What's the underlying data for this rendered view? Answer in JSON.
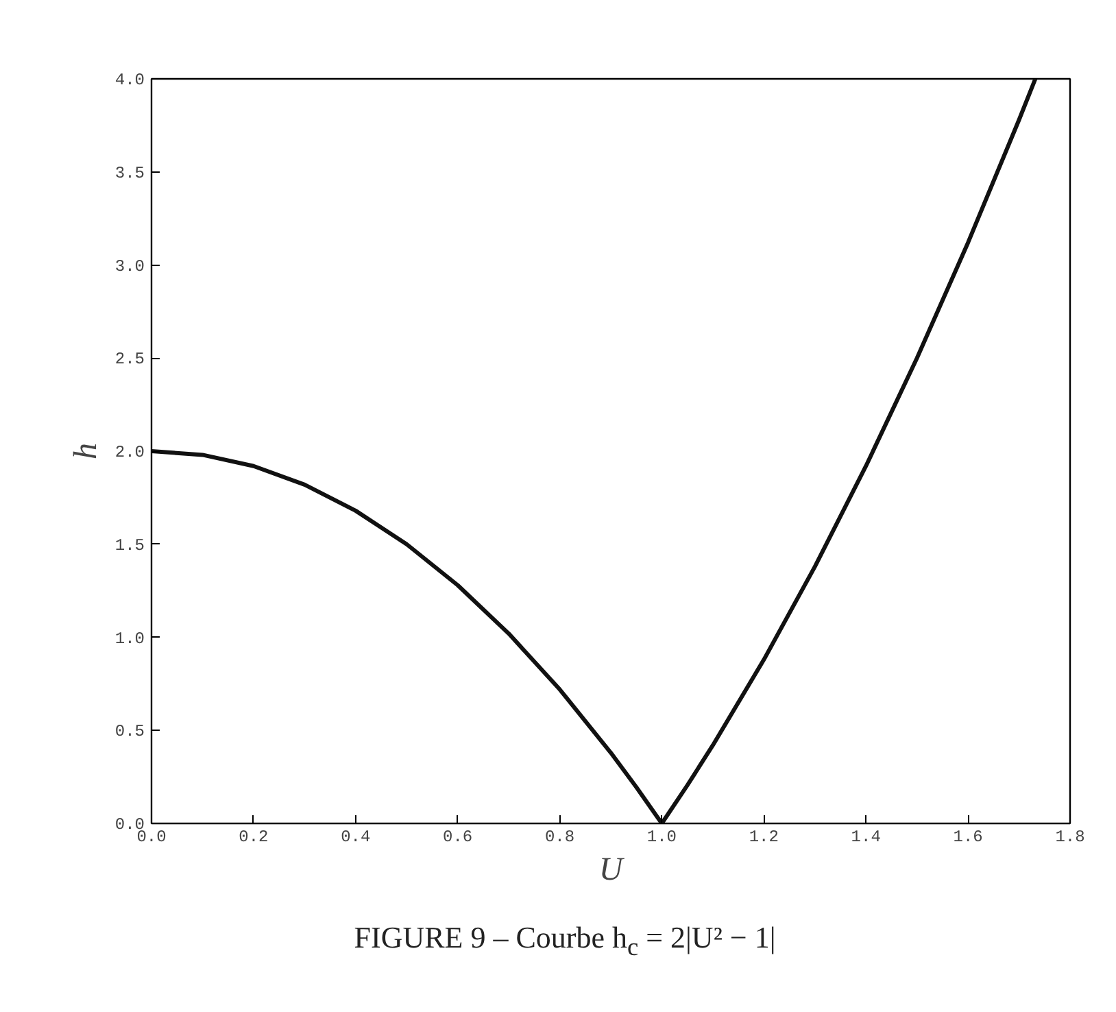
{
  "chart_data": {
    "type": "line",
    "xlabel": "U",
    "ylabel": "h",
    "annotations": [
      "FIGURE 9 – Courbe h$_{c}$ = 2|U² − 1|"
    ],
    "x": [
      0,
      0.1,
      0.2,
      0.3,
      0.4,
      0.5,
      0.6,
      0.7,
      0.8,
      0.9,
      0.95,
      1.0,
      1.05,
      1.1,
      1.2,
      1.3,
      1.4,
      1.5,
      1.6,
      1.7,
      1.732
    ],
    "series": [
      {
        "color": "#111111",
        "values": [
          2.0,
          1.98,
          1.92,
          1.82,
          1.68,
          1.5,
          1.28,
          1.02,
          0.72,
          0.38,
          0.195,
          0,
          0.205,
          0.42,
          0.88,
          1.38,
          1.92,
          2.5,
          3.12,
          3.78,
          4.0
        ]
      }
    ],
    "xlim": [
      0,
      1.8
    ],
    "xticks": [
      {
        "value": 0,
        "label": "0.0"
      },
      0.2,
      0.4,
      0.6,
      0.8,
      {
        "value": 1,
        "label": "1.0"
      },
      1.2,
      1.4,
      1.6,
      1.8
    ],
    "ylim": [
      0,
      4
    ],
    "yticks": [
      {
        "value": 0,
        "label": "0.0"
      },
      0.5,
      {
        "value": 1,
        "label": "1.0"
      },
      1.5,
      {
        "value": 2,
        "label": "2.0"
      },
      2.5,
      {
        "value": 3,
        "label": "3.0"
      },
      3.5,
      {
        "value": 4,
        "label": "4.0"
      }
    ],
    "grid": false,
    "line_style": "solid",
    "marker": "none"
  }
}
